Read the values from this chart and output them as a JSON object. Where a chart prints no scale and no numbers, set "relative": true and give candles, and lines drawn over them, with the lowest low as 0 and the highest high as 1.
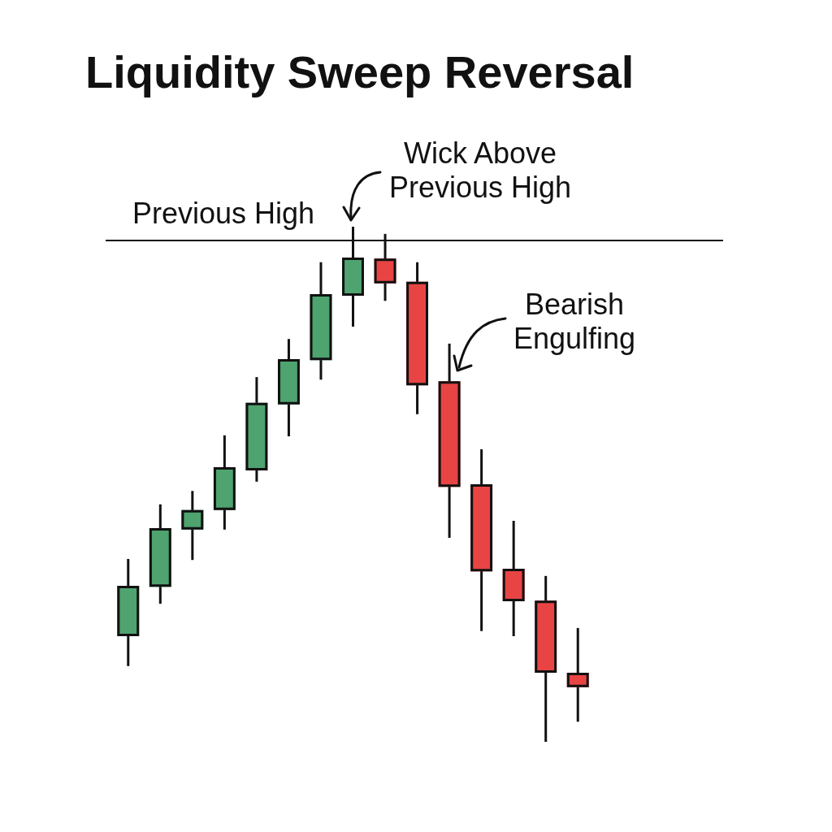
{
  "chart_data": {
    "type": "candlestick",
    "title": "Liquidity Sweep Reversal",
    "relative": true,
    "categories": [
      null,
      null,
      null,
      null,
      null,
      null,
      null,
      null,
      null,
      null,
      null,
      null,
      null,
      null,
      null
    ],
    "ohlc": [
      [
        0.205,
        0.355,
        0.147,
        0.303
      ],
      [
        0.301,
        0.461,
        0.268,
        0.415
      ],
      [
        0.412,
        0.487,
        0.353,
        0.45
      ],
      [
        0.45,
        0.595,
        0.412,
        0.533
      ],
      [
        0.527,
        0.708,
        0.505,
        0.658
      ],
      [
        0.655,
        0.782,
        0.593,
        0.743
      ],
      [
        0.741,
        0.931,
        0.703,
        0.869
      ],
      [
        0.866,
        1,
        0.806,
        0.94
      ],
      [
        0.938,
        0.986,
        0.856,
        0.89
      ],
      [
        0.893,
        0.931,
        0.636,
        0.692
      ],
      [
        0.7,
        0.773,
        0.396,
        0.495
      ],
      [
        0.5,
        0.568,
        0.215,
        0.331
      ],
      [
        0.336,
        0.429,
        0.205,
        0.273
      ],
      [
        0.274,
        0.322,
        0,
        0.134
      ],
      [
        0.134,
        0.221,
        0.039,
        0.106
      ]
    ],
    "colors": [
      "#4ea36f",
      "#4ea36f",
      "#4ea36f",
      "#4ea36f",
      "#4ea36f",
      "#4ea36f",
      "#4ea36f",
      "#4ea36f",
      "#e84444",
      "#e84444",
      "#e84444",
      "#e84444",
      "#e84444",
      "#e84444",
      "#e84444"
    ],
    "ref_lines": [
      {
        "axis": "y",
        "value": 0.973,
        "label": "Previous High",
        "color": "#111111"
      }
    ],
    "annotations": [
      "Wick Above Previous High",
      "Bearish Engulfing"
    ]
  }
}
